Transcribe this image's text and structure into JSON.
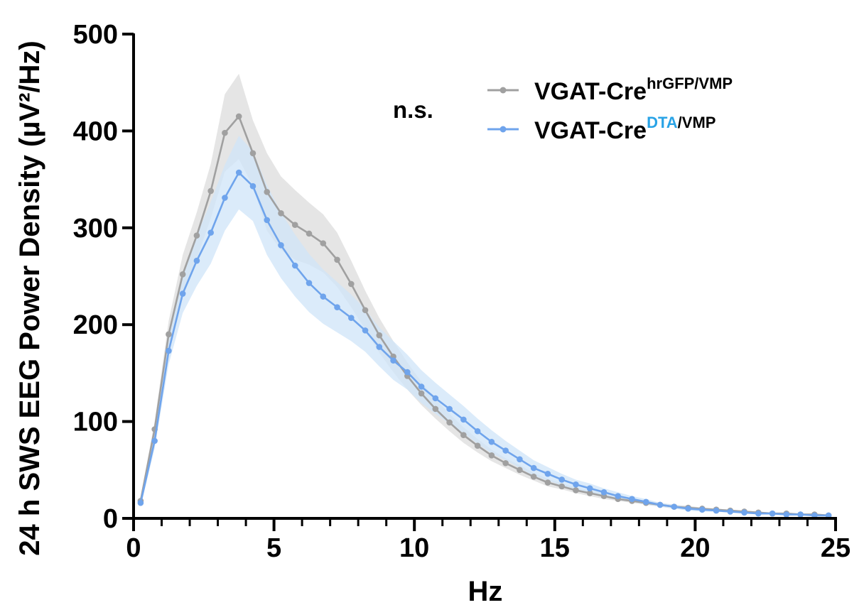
{
  "chart_data": {
    "type": "line",
    "xlabel": "Hz",
    "ylabel": "24 h SWS EEG Power Density (µV²/Hz)",
    "xlim": [
      0,
      25
    ],
    "ylim": [
      0,
      500
    ],
    "xticks": [
      "0",
      "5",
      "10",
      "15",
      "20",
      "25"
    ],
    "yticks": [
      "0",
      "100",
      "200",
      "300",
      "400",
      "500"
    ],
    "annotation": "n.s.",
    "legend_position": "top-right",
    "x": [
      0.25,
      0.75,
      1.25,
      1.75,
      2.25,
      2.75,
      3.25,
      3.75,
      4.25,
      4.75,
      5.25,
      5.75,
      6.25,
      6.75,
      7.25,
      7.75,
      8.25,
      8.75,
      9.25,
      9.75,
      10.25,
      10.75,
      11.25,
      11.75,
      12.25,
      12.75,
      13.25,
      13.75,
      14.25,
      14.75,
      15.25,
      15.75,
      16.25,
      16.75,
      17.25,
      17.75,
      18.25,
      18.75,
      19.25,
      19.75,
      20.25,
      20.75,
      21.25,
      21.75,
      22.25,
      22.75,
      23.25,
      23.75,
      24.25,
      24.75
    ],
    "series": [
      {
        "name": "VGAT-Cre",
        "name_sup": "hrGFP/VMP",
        "color": "#a0a0a0",
        "band_color": "#dcdcdc",
        "values": [
          18,
          92,
          190,
          252,
          292,
          338,
          398,
          415,
          377,
          337,
          315,
          303,
          294,
          284,
          267,
          242,
          215,
          189,
          167,
          147,
          129,
          113,
          99,
          86,
          75,
          65,
          57,
          50,
          43,
          37,
          33,
          29,
          26,
          23,
          20,
          18,
          16,
          14,
          12,
          11,
          10,
          9,
          8,
          7,
          6,
          5,
          5,
          4,
          4,
          3
        ],
        "error": [
          4,
          8,
          14,
          20,
          24,
          28,
          40,
          44,
          34,
          40,
          38,
          36,
          32,
          30,
          28,
          24,
          20,
          18,
          16,
          14,
          12,
          10,
          9,
          8,
          7,
          6,
          5,
          5,
          4,
          4,
          3,
          3,
          3,
          3,
          2,
          2,
          2,
          2,
          2,
          2,
          1,
          1,
          1,
          1,
          1,
          1,
          1,
          1,
          1,
          1
        ]
      },
      {
        "name": "VGAT-Cre",
        "name_sup": "DTA",
        "name_sup2": "/VMP",
        "color": "#6fa4ec",
        "sup_color": "#29a3e6",
        "band_color": "#cfe4f8",
        "values": [
          16,
          80,
          173,
          232,
          266,
          295,
          331,
          357,
          343,
          308,
          282,
          261,
          243,
          229,
          218,
          207,
          194,
          177,
          163,
          151,
          136,
          124,
          113,
          102,
          90,
          79,
          70,
          61,
          52,
          46,
          40,
          35,
          31,
          27,
          23,
          20,
          17,
          14,
          12,
          10,
          9,
          8,
          7,
          6,
          5,
          5,
          4,
          4,
          3,
          3
        ],
        "error": [
          4,
          8,
          14,
          20,
          26,
          32,
          34,
          38,
          36,
          36,
          34,
          32,
          30,
          28,
          26,
          24,
          22,
          20,
          20,
          18,
          17,
          16,
          15,
          14,
          13,
          12,
          10,
          9,
          8,
          7,
          6,
          5,
          5,
          4,
          4,
          3,
          3,
          2,
          2,
          2,
          2,
          1,
          1,
          1,
          1,
          1,
          1,
          1,
          1,
          1
        ]
      }
    ]
  }
}
